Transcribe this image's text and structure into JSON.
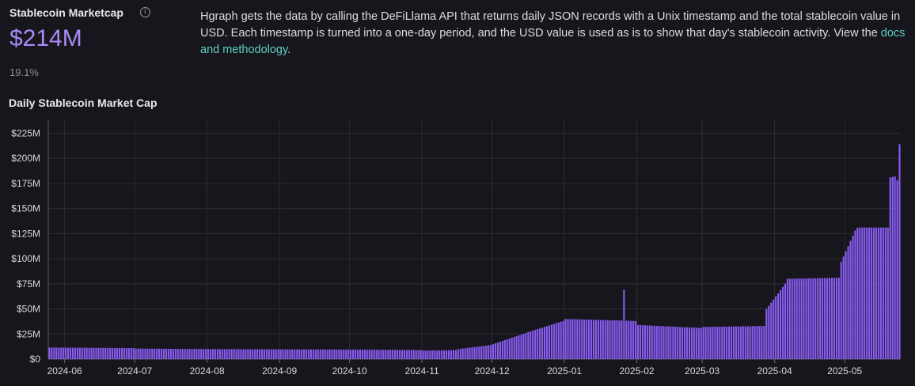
{
  "header": {
    "metric_title": "Stablecoin Marketcap",
    "metric_value": "$214M",
    "metric_change": "19.1%",
    "info_icon": "info-icon"
  },
  "description": {
    "text": "Hgraph gets the data by calling the DeFiLlama API that returns daily JSON records with a Unix timestamp and the total stablecoin value in USD. Each timestamp is turned into a one-day period, and the USD value is used as is to show that day's stablecoin activity. View the ",
    "link_text": "docs and methodology",
    "suffix": "."
  },
  "chart_title": "Daily Stablecoin Market Cap",
  "colors": {
    "bar": "#8a5cf6",
    "grid": "#2c2c36",
    "accent": "#a98bf5",
    "link": "#5fd0c2"
  },
  "chart_data": {
    "type": "bar",
    "title": "Daily Stablecoin Market Cap",
    "xlabel": "",
    "ylabel": "",
    "x_range": [
      "2024-05-25",
      "2025-05-24"
    ],
    "ylim": [
      0,
      230
    ],
    "y_unit": "$M",
    "yticks": [
      0,
      25,
      50,
      75,
      100,
      125,
      150,
      175,
      200,
      225
    ],
    "ytick_labels": [
      "$0",
      "$25M",
      "$50M",
      "$75M",
      "$100M",
      "$125M",
      "$150M",
      "$175M",
      "$200M",
      "$225M"
    ],
    "xticks": [
      "2024-06-01",
      "2024-07-01",
      "2024-08-01",
      "2024-09-01",
      "2024-10-01",
      "2024-11-01",
      "2024-12-01",
      "2025-01-01",
      "2025-02-01",
      "2025-03-01",
      "2025-04-01",
      "2025-05-01"
    ],
    "xtick_labels": [
      "2024-06",
      "2024-07",
      "2024-08",
      "2024-09",
      "2024-10",
      "2024-11",
      "2024-12",
      "2025-01",
      "2025-02",
      "2025-03",
      "2025-04",
      "2025-05"
    ],
    "grid": true,
    "legend": "none",
    "series": [
      {
        "name": "",
        "segments": [
          {
            "start": "2024-05-25",
            "end": "2024-06-30",
            "from": 11.5,
            "to": 11
          },
          {
            "start": "2024-07-01",
            "end": "2024-07-31",
            "from": 10.5,
            "to": 10
          },
          {
            "start": "2024-08-01",
            "end": "2024-09-30",
            "from": 10,
            "to": 9.5
          },
          {
            "start": "2024-10-01",
            "end": "2024-10-31",
            "from": 9.5,
            "to": 9
          },
          {
            "start": "2024-11-01",
            "end": "2024-11-15",
            "from": 8.5,
            "to": 9
          },
          {
            "start": "2024-11-16",
            "end": "2024-11-30",
            "from": 10,
            "to": 14
          },
          {
            "start": "2024-12-01",
            "end": "2024-12-15",
            "from": 15,
            "to": 26
          },
          {
            "start": "2024-12-16",
            "end": "2024-12-31",
            "from": 27,
            "to": 38
          },
          {
            "start": "2025-01-01",
            "end": "2025-01-31",
            "from": 40,
            "to": 38
          },
          {
            "start": "2025-02-01",
            "end": "2025-02-28",
            "from": 34,
            "to": 31
          },
          {
            "start": "2025-03-01",
            "end": "2025-03-27",
            "from": 32,
            "to": 33
          },
          {
            "start": "2025-03-28",
            "end": "2025-04-05",
            "from": 50,
            "to": 75
          },
          {
            "start": "2025-04-06",
            "end": "2025-04-28",
            "from": 80,
            "to": 81
          },
          {
            "start": "2025-04-29",
            "end": "2025-05-05",
            "from": 97,
            "to": 128
          },
          {
            "start": "2025-05-06",
            "end": "2025-05-19",
            "from": 131,
            "to": 131
          },
          {
            "start": "2025-05-20",
            "end": "2025-05-22",
            "from": 181,
            "to": 182
          },
          {
            "start": "2025-05-23",
            "end": "2025-05-23",
            "from": 178,
            "to": 178
          },
          {
            "start": "2025-05-24",
            "end": "2025-05-24",
            "from": 214,
            "to": 214
          }
        ],
        "spikes": [
          {
            "date": "2025-01-26",
            "value": 69
          }
        ]
      }
    ]
  }
}
